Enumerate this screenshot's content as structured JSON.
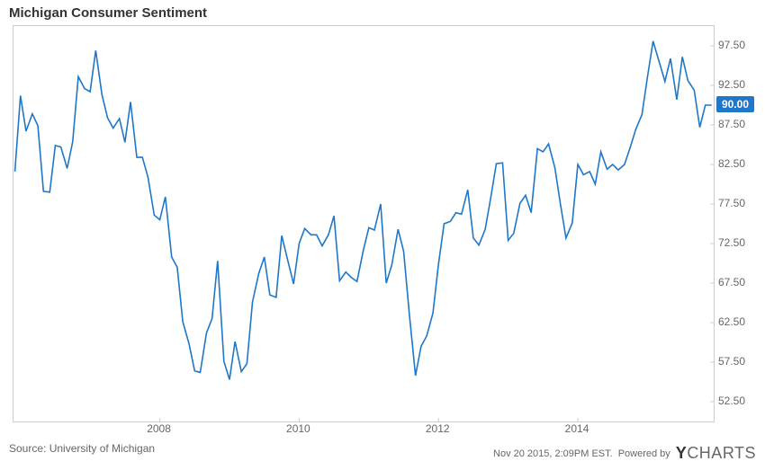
{
  "title": "Michigan Consumer Sentiment",
  "source_text": "Source: University of Michigan",
  "timestamp_text": "Nov 20 2015, 2:09PM EST.",
  "powered_by_text": "Powered by",
  "logo_text_y": "Y",
  "logo_text_charts": "CHARTS",
  "chart": {
    "type": "line",
    "background_color": "#ffffff",
    "border_color": "#cccccc",
    "series_color": "#1f77c9",
    "line_width": 1.6,
    "tick_font_size": 12,
    "tick_color": "#666666",
    "title_font_size": 15,
    "title_font_weight": "bold",
    "x_min": 2005.9,
    "x_max": 2015.95,
    "y_min": 50.0,
    "y_max": 100.0,
    "y_ticks": [
      52.5,
      57.5,
      62.5,
      67.5,
      72.5,
      77.5,
      82.5,
      87.5,
      92.5,
      97.5
    ],
    "y_tick_labels": [
      "52.50",
      "57.50",
      "62.50",
      "67.50",
      "72.50",
      "77.50",
      "82.50",
      "87.50",
      "92.50",
      "97.50"
    ],
    "x_ticks": [
      2008,
      2010,
      2012,
      2014
    ],
    "x_tick_labels": [
      "2008",
      "2010",
      "2012",
      "2014"
    ],
    "last_value_label": "90.00",
    "last_value_box_color": "#1f77c9",
    "last_value_text_color": "#ffffff",
    "series": {
      "name": "Michigan Consumer Sentiment",
      "points": [
        [
          2005.92,
          81.6
        ],
        [
          2006.0,
          91.2
        ],
        [
          2006.08,
          86.7
        ],
        [
          2006.17,
          88.9
        ],
        [
          2006.25,
          87.4
        ],
        [
          2006.33,
          79.1
        ],
        [
          2006.42,
          79.0
        ],
        [
          2006.5,
          84.9
        ],
        [
          2006.58,
          84.7
        ],
        [
          2006.67,
          82.0
        ],
        [
          2006.75,
          85.4
        ],
        [
          2006.83,
          93.6
        ],
        [
          2006.92,
          92.1
        ],
        [
          2007.0,
          91.7
        ],
        [
          2007.08,
          96.9
        ],
        [
          2007.17,
          91.3
        ],
        [
          2007.25,
          88.4
        ],
        [
          2007.33,
          87.1
        ],
        [
          2007.42,
          88.3
        ],
        [
          2007.5,
          85.3
        ],
        [
          2007.58,
          90.4
        ],
        [
          2007.67,
          83.4
        ],
        [
          2007.75,
          83.4
        ],
        [
          2007.83,
          80.9
        ],
        [
          2007.92,
          76.1
        ],
        [
          2008.0,
          75.5
        ],
        [
          2008.08,
          78.4
        ],
        [
          2008.17,
          70.8
        ],
        [
          2008.25,
          69.5
        ],
        [
          2008.33,
          62.6
        ],
        [
          2008.42,
          59.8
        ],
        [
          2008.5,
          56.4
        ],
        [
          2008.58,
          56.2
        ],
        [
          2008.67,
          61.2
        ],
        [
          2008.75,
          63.0
        ],
        [
          2008.83,
          70.3
        ],
        [
          2008.92,
          57.6
        ],
        [
          2009.0,
          55.3
        ],
        [
          2009.08,
          60.1
        ],
        [
          2009.17,
          56.3
        ],
        [
          2009.25,
          57.3
        ],
        [
          2009.33,
          65.1
        ],
        [
          2009.42,
          68.7
        ],
        [
          2009.5,
          70.8
        ],
        [
          2009.58,
          66.0
        ],
        [
          2009.67,
          65.7
        ],
        [
          2009.75,
          73.5
        ],
        [
          2009.83,
          70.6
        ],
        [
          2009.92,
          67.4
        ],
        [
          2010.0,
          72.5
        ],
        [
          2010.08,
          74.4
        ],
        [
          2010.17,
          73.6
        ],
        [
          2010.25,
          73.6
        ],
        [
          2010.33,
          72.2
        ],
        [
          2010.42,
          73.6
        ],
        [
          2010.5,
          76.0
        ],
        [
          2010.58,
          67.8
        ],
        [
          2010.67,
          68.9
        ],
        [
          2010.75,
          68.2
        ],
        [
          2010.83,
          67.7
        ],
        [
          2010.92,
          71.6
        ],
        [
          2011.0,
          74.5
        ],
        [
          2011.08,
          74.2
        ],
        [
          2011.17,
          77.5
        ],
        [
          2011.25,
          67.5
        ],
        [
          2011.33,
          69.8
        ],
        [
          2011.42,
          74.3
        ],
        [
          2011.5,
          71.5
        ],
        [
          2011.58,
          63.7
        ],
        [
          2011.67,
          55.8
        ],
        [
          2011.75,
          59.5
        ],
        [
          2011.83,
          60.8
        ],
        [
          2011.92,
          63.7
        ],
        [
          2012.0,
          69.9
        ],
        [
          2012.08,
          75.0
        ],
        [
          2012.17,
          75.3
        ],
        [
          2012.25,
          76.4
        ],
        [
          2012.33,
          76.2
        ],
        [
          2012.42,
          79.3
        ],
        [
          2012.5,
          73.2
        ],
        [
          2012.58,
          72.3
        ],
        [
          2012.67,
          74.3
        ],
        [
          2012.75,
          78.3
        ],
        [
          2012.83,
          82.6
        ],
        [
          2012.92,
          82.7
        ],
        [
          2013.0,
          72.9
        ],
        [
          2013.08,
          73.8
        ],
        [
          2013.17,
          77.6
        ],
        [
          2013.25,
          78.6
        ],
        [
          2013.33,
          76.4
        ],
        [
          2013.42,
          84.5
        ],
        [
          2013.5,
          84.1
        ],
        [
          2013.58,
          85.1
        ],
        [
          2013.67,
          82.1
        ],
        [
          2013.75,
          77.5
        ],
        [
          2013.83,
          73.2
        ],
        [
          2013.92,
          75.1
        ],
        [
          2014.0,
          82.5
        ],
        [
          2014.08,
          81.2
        ],
        [
          2014.17,
          81.6
        ],
        [
          2014.25,
          80.0
        ],
        [
          2014.33,
          84.1
        ],
        [
          2014.42,
          81.9
        ],
        [
          2014.5,
          82.5
        ],
        [
          2014.58,
          81.8
        ],
        [
          2014.67,
          82.5
        ],
        [
          2014.75,
          84.6
        ],
        [
          2014.83,
          86.9
        ],
        [
          2014.92,
          88.8
        ],
        [
          2015.0,
          93.6
        ],
        [
          2015.08,
          98.1
        ],
        [
          2015.17,
          95.4
        ],
        [
          2015.25,
          93.0
        ],
        [
          2015.33,
          95.9
        ],
        [
          2015.42,
          90.7
        ],
        [
          2015.5,
          96.1
        ],
        [
          2015.58,
          93.1
        ],
        [
          2015.67,
          91.9
        ],
        [
          2015.75,
          87.2
        ],
        [
          2015.83,
          90.0
        ],
        [
          2015.92,
          90.0
        ]
      ]
    }
  }
}
